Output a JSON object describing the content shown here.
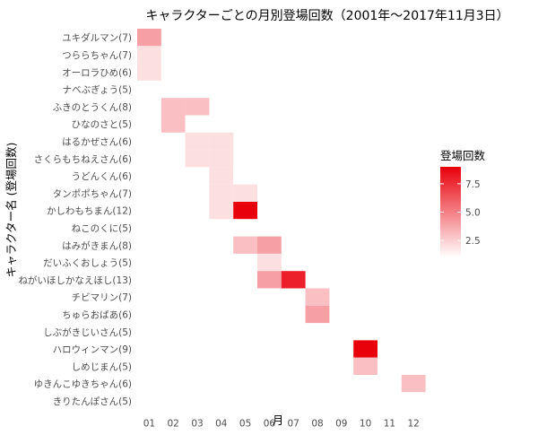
{
  "chart_data": {
    "type": "heatmap",
    "title": "キャラクターごとの月別登場回数（2001年～2017年11月3日）",
    "xlabel": "月",
    "ylabel": "キャラクター名 (登場回数)",
    "x": [
      "01",
      "02",
      "03",
      "04",
      "05",
      "06",
      "07",
      "08",
      "09",
      "10",
      "11",
      "12"
    ],
    "y": [
      "ユキダルマン(7)",
      "つららちゃん(7)",
      "オーロラひめ(6)",
      "ナベぶぎょう(5)",
      "ふきのとうくん(8)",
      "ひなのさと(5)",
      "はるかぜさん(6)",
      "さくらもちねえさん(6)",
      "うどんくん(6)",
      "タンポポちゃん(7)",
      "かしわもちまん(12)",
      "ねこのくに(5)",
      "はみがきまん(8)",
      "だいふくおしょう(5)",
      "ねがいほしかなえほし(13)",
      "チビマリン(7)",
      "ちゅらおばあ(6)",
      "しぶがきじいさん(5)",
      "ハロウィンマン(9)",
      "しめじまん(5)",
      "ゆきんこゆきちゃん(6)",
      "きりたんぽさん(5)"
    ],
    "values": [
      [
        4,
        0,
        0,
        0,
        0,
        0,
        0,
        0,
        0,
        0,
        0,
        0
      ],
      [
        2,
        1,
        0,
        0,
        0,
        0,
        0,
        0,
        0,
        0,
        0,
        1
      ],
      [
        2,
        0,
        0,
        0,
        0,
        0,
        0,
        0,
        0,
        0,
        0,
        0
      ],
      [
        1,
        0,
        0,
        0,
        0,
        0,
        0,
        0,
        0,
        0,
        1,
        0
      ],
      [
        0,
        3,
        3,
        0,
        0,
        0,
        0,
        0,
        0,
        0,
        0,
        0
      ],
      [
        0,
        3,
        1,
        0,
        0,
        0,
        0,
        0,
        0,
        0,
        0,
        0
      ],
      [
        0,
        0,
        2,
        2,
        0,
        0,
        0,
        0,
        0,
        0,
        0,
        0
      ],
      [
        0,
        0,
        2,
        2,
        0,
        0,
        0,
        0,
        0,
        0,
        0,
        0
      ],
      [
        0,
        0,
        1,
        2,
        1,
        0,
        0,
        0,
        0,
        0,
        0,
        0
      ],
      [
        0,
        0,
        0,
        2,
        2,
        0,
        0,
        0,
        0,
        0,
        0,
        0
      ],
      [
        0,
        0,
        0,
        2,
        9,
        0,
        0,
        0,
        0,
        0,
        0,
        0
      ],
      [
        0,
        0,
        0,
        0,
        1,
        0,
        0,
        0,
        0,
        0,
        0,
        0
      ],
      [
        0,
        0,
        0,
        0,
        3,
        4,
        0,
        0,
        0,
        0,
        0,
        0
      ],
      [
        0,
        0,
        0,
        0,
        0,
        2,
        0,
        0,
        0,
        0,
        0,
        0
      ],
      [
        0,
        0,
        0,
        0,
        0,
        4,
        8,
        0,
        0,
        0,
        0,
        0
      ],
      [
        0,
        0,
        0,
        0,
        0,
        0,
        1,
        3,
        0,
        0,
        0,
        0
      ],
      [
        0,
        0,
        0,
        0,
        0,
        0,
        0,
        4,
        0,
        0,
        0,
        0
      ],
      [
        0,
        0,
        0,
        0,
        0,
        0,
        0,
        0,
        1,
        0,
        1,
        0
      ],
      [
        0,
        0,
        0,
        0,
        0,
        0,
        0,
        0,
        0,
        9,
        0,
        0
      ],
      [
        0,
        0,
        0,
        0,
        0,
        0,
        0,
        0,
        0,
        3,
        0,
        0
      ],
      [
        1,
        0,
        0,
        0,
        0,
        0,
        0,
        0,
        0,
        0,
        0,
        3
      ],
      [
        0,
        0,
        0,
        0,
        0,
        0,
        0,
        0,
        0,
        0,
        0,
        1
      ]
    ],
    "legend": {
      "title": "登場回数",
      "placement": "right",
      "min": 1,
      "max": 9,
      "breaks": [
        2.5,
        5.0,
        7.5
      ],
      "break_labels": [
        "2.5",
        "5.0",
        "7.5"
      ],
      "low_color": "#ffffff",
      "high_color": "#e8000b"
    },
    "grid": false
  }
}
